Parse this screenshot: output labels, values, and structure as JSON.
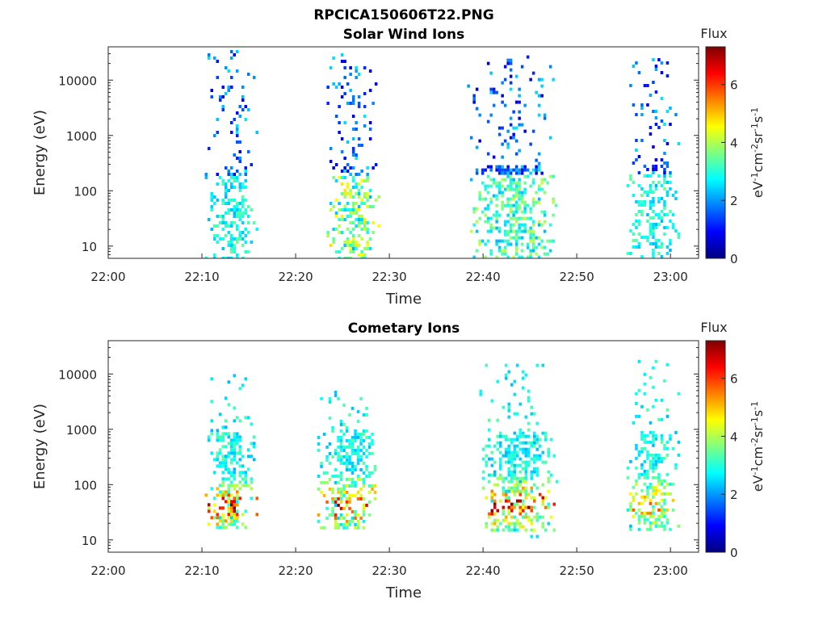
{
  "figure_title": "RPCICA150606T22.PNG",
  "chart_data": [
    {
      "type": "heatmap",
      "title": "Solar Wind Ions",
      "xlabel": "Time",
      "ylabel": "Energy (eV)",
      "yscale": "log",
      "ylim": [
        6,
        40000
      ],
      "xlim_minutes": [
        0,
        63
      ],
      "x_ticks": [
        "22:00",
        "22:10",
        "22:20",
        "22:30",
        "22:40",
        "22:50",
        "23:00"
      ],
      "y_ticks": [
        "10",
        "100",
        "1000",
        "10000"
      ],
      "colorbar": {
        "title": "Flux",
        "label": "eV-1cm-2sr-1s-1",
        "range": [
          0,
          7.3
        ],
        "ticks": [
          "0",
          "2",
          "4",
          "6"
        ]
      },
      "bursts": [
        {
          "start": "22:10",
          "end": "22:16",
          "emin": 6,
          "emax": 35000,
          "peak_flux": 3.5
        },
        {
          "start": "22:23",
          "end": "22:29",
          "emin": 6,
          "emax": 35000,
          "peak_flux": 4.8
        },
        {
          "start": "22:38",
          "end": "22:48",
          "emin": 6,
          "emax": 28000,
          "peak_flux": 4.2
        },
        {
          "start": "22:55",
          "end": "23:01",
          "emin": 6,
          "emax": 25000,
          "peak_flux": 3.5
        }
      ]
    },
    {
      "type": "heatmap",
      "title": "Cometary Ions",
      "xlabel": "Time",
      "ylabel": "Energy (eV)",
      "yscale": "log",
      "ylim": [
        6,
        40000
      ],
      "xlim_minutes": [
        0,
        63
      ],
      "x_ticks": [
        "22:00",
        "22:10",
        "22:20",
        "22:30",
        "22:40",
        "22:50",
        "23:00"
      ],
      "y_ticks": [
        "10",
        "100",
        "1000",
        "10000"
      ],
      "colorbar": {
        "title": "Flux",
        "label": "eV-1cm-2sr-1s-1",
        "range": [
          0,
          7.3
        ],
        "ticks": [
          "0",
          "2",
          "4",
          "6"
        ]
      },
      "bursts": [
        {
          "start": "22:10",
          "end": "22:16",
          "emin": 15,
          "emax": 10000,
          "peak_flux": 7.0
        },
        {
          "start": "22:22",
          "end": "22:29",
          "emin": 12,
          "emax": 5000,
          "peak_flux": 7.0
        },
        {
          "start": "22:39",
          "end": "22:48",
          "emin": 12,
          "emax": 20000,
          "peak_flux": 7.0
        },
        {
          "start": "22:55",
          "end": "23:01",
          "emin": 15,
          "emax": 18000,
          "peak_flux": 5.5
        }
      ]
    }
  ]
}
